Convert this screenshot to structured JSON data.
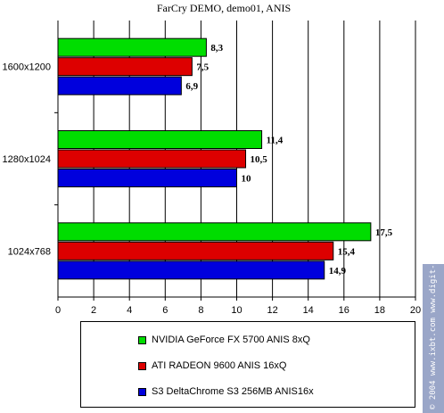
{
  "chart_data": {
    "type": "bar",
    "orientation": "horizontal",
    "title": "FarCry DEMO, demo01, ANIS",
    "xlabel": "",
    "ylabel": "",
    "categories": [
      "1600x1200",
      "1280x1024",
      "1024x768"
    ],
    "series": [
      {
        "name": "NVIDIA GeForce FX 5700 ANIS 8xQ",
        "color": "#00dd00",
        "values": [
          8.3,
          11.4,
          17.5
        ],
        "labels": [
          "8,3",
          "11,4",
          "17,5"
        ]
      },
      {
        "name": "ATI RADEON 9600 ANIS 16xQ",
        "color": "#dd0000",
        "values": [
          7.5,
          10.5,
          15.4
        ],
        "labels": [
          "7,5",
          "10,5",
          "15,4"
        ]
      },
      {
        "name": "S3 DeltaChrome S3 256MB ANIS16x",
        "color": "#0000dd",
        "values": [
          6.9,
          10,
          14.9
        ],
        "labels": [
          "6,9",
          "10",
          "14,9"
        ]
      }
    ],
    "xlim": [
      0,
      20
    ],
    "ticks": [
      "0",
      "2",
      "4",
      "6",
      "8",
      "10",
      "12",
      "14",
      "16",
      "18",
      "20"
    ],
    "grid": true,
    "legend_position": "bottom"
  },
  "watermark": "© 2004 www.ixbt.com  www.digit-life.com"
}
